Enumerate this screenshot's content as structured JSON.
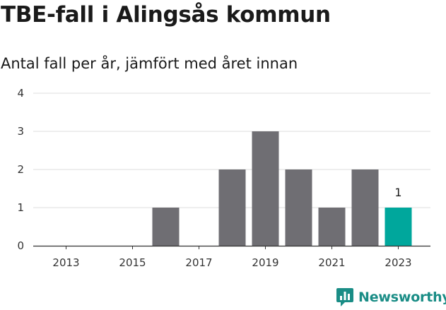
{
  "title": "TBE-fall i Alingsås kommun",
  "subtitle": "Antal fall per år, jämfört med året innan",
  "brand": {
    "name": "Newsworthy",
    "logo_icon": "newsworthy-logo-icon",
    "color": "#1a8d86"
  },
  "chart_data": {
    "type": "bar",
    "title": "TBE-fall i Alingsås kommun",
    "subtitle": "Antal fall per år, jämfört med året innan",
    "xlabel": "",
    "ylabel": "",
    "categories": [
      "2013",
      "2014",
      "2015",
      "2016",
      "2017",
      "2018",
      "2019",
      "2020",
      "2021",
      "2022",
      "2023"
    ],
    "values": [
      0,
      0,
      0,
      1,
      0,
      2,
      3,
      2,
      1,
      2,
      1
    ],
    "x_tick_labels": [
      "2013",
      "2015",
      "2017",
      "2019",
      "2021",
      "2023"
    ],
    "y_ticks": [
      0,
      1,
      2,
      3,
      4
    ],
    "ylim": [
      0,
      4
    ],
    "grid": true,
    "bar_color": "#6f6e73",
    "highlight_color": "#00a79c",
    "highlight_category": "2023",
    "data_labels": [
      {
        "category": "2023",
        "text": "1"
      }
    ]
  }
}
